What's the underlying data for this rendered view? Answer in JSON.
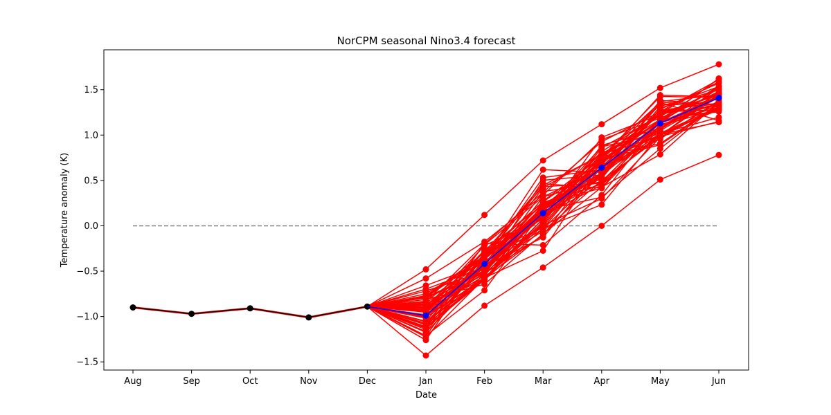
{
  "chart_data": {
    "type": "line",
    "title": "NorCPM seasonal Nino3.4 forecast",
    "xlabel": "Date",
    "ylabel": "Temperature anomaly (K)",
    "categories": [
      "Aug",
      "Sep",
      "Oct",
      "Nov",
      "Dec",
      "Jan",
      "Feb",
      "Mar",
      "Apr",
      "May",
      "Jun"
    ],
    "ylim": [
      -1.59,
      1.94
    ],
    "yticks": [
      -1.5,
      -1.0,
      -0.5,
      0.0,
      0.5,
      1.0,
      1.5
    ],
    "ytick_labels": [
      "−1.5",
      "−1.0",
      "−0.5",
      "0.0",
      "0.5",
      "1.0",
      "1.5"
    ],
    "grid": false,
    "zero_line": {
      "y": 0.0,
      "style": "dashed",
      "color": "#808080"
    },
    "observed": {
      "color": "#000000",
      "values": [
        -0.9,
        -0.97,
        -0.91,
        -1.01,
        -0.89
      ]
    },
    "ensemble": {
      "color": "#ff0000",
      "count": 60,
      "start_value": -0.89,
      "jan_range": [
        -1.43,
        -0.48
      ],
      "feb_range": [
        -0.88,
        0.12
      ],
      "mar_range": [
        -0.46,
        0.72
      ],
      "apr_range": [
        0.0,
        1.12
      ],
      "may_range": [
        0.51,
        1.52
      ],
      "jun_range": [
        0.78,
        1.78
      ]
    },
    "ensemble_mean": {
      "color": "#0000ff",
      "values": [
        null,
        null,
        null,
        null,
        -0.89,
        -0.99,
        -0.42,
        0.14,
        0.64,
        1.13,
        1.41
      ]
    }
  }
}
